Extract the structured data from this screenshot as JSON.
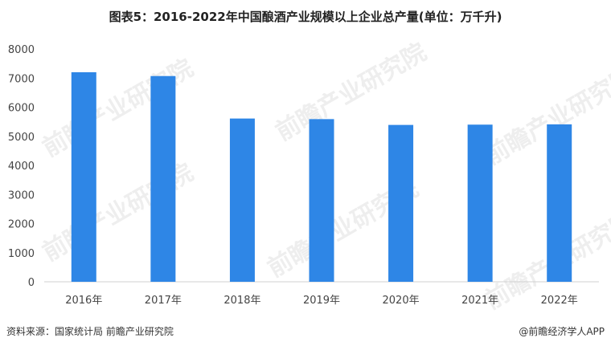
{
  "chart_data": {
    "type": "bar",
    "title": "图表5：2016-2022年中国酿酒产业规模以上企业总产量(单位：万千升)",
    "categories": [
      "2016年",
      "2017年",
      "2018年",
      "2019年",
      "2020年",
      "2021年",
      "2022年"
    ],
    "values": [
      7200,
      7070,
      5610,
      5590,
      5390,
      5400,
      5410
    ],
    "ylim": [
      0,
      8000
    ],
    "yticks": [
      "0",
      "1000",
      "2000",
      "3000",
      "4000",
      "5000",
      "6000",
      "7000",
      "8000"
    ],
    "bar_color": "#2e86e6",
    "grid": false
  },
  "footer": {
    "source": "资料来源：国家统计局 前瞻产业研究院",
    "brand": "@前瞻经济学人APP"
  },
  "watermark": {
    "text": "前瞻产业研究院"
  }
}
